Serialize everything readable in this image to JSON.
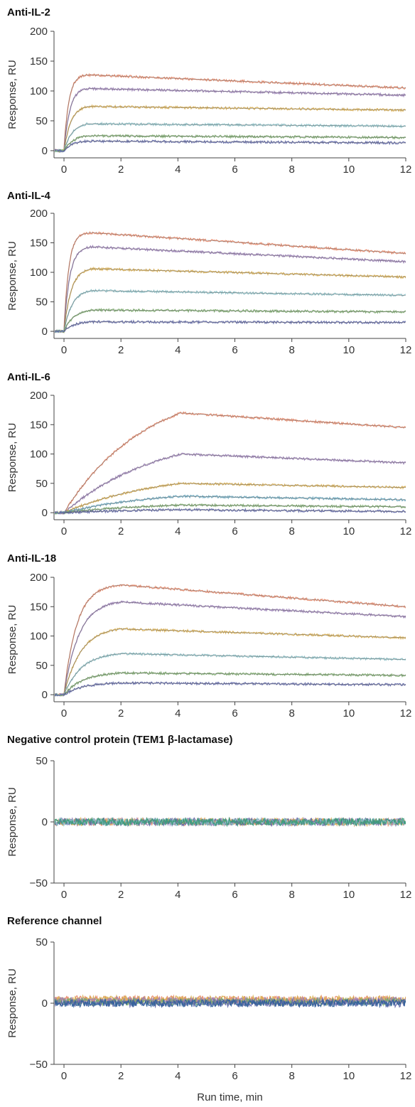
{
  "chart_data": [
    {
      "type": "line",
      "title": "Anti-IL-2",
      "ylabel": "Response, RU",
      "xlabel": "",
      "xlim": [
        -0.35,
        12
      ],
      "ylim": [
        -12,
        200
      ],
      "xticks": [
        "0",
        "2",
        "4",
        "6",
        "8",
        "10",
        "12"
      ],
      "yticks": [
        "0",
        "50",
        "100",
        "150",
        "200"
      ],
      "injection_end": 0.85,
      "noise": 2,
      "series": [
        {
          "plateau": 127,
          "end": 105,
          "rate": 6.0,
          "color": "#e98a6a"
        },
        {
          "plateau": 104,
          "end": 93,
          "rate": 5.0,
          "color": "#9b80b8"
        },
        {
          "plateau": 74,
          "end": 68,
          "rate": 4.0,
          "color": "#d9ae50"
        },
        {
          "plateau": 45,
          "end": 41,
          "rate": 3.5,
          "color": "#8ac0c6"
        },
        {
          "plateau": 25,
          "end": 22,
          "rate": 3.0,
          "color": "#7aaa6a"
        },
        {
          "plateau": 16,
          "end": 13,
          "rate": 3.0,
          "color": "#5f67a8"
        }
      ]
    },
    {
      "type": "line",
      "title": "Anti-IL-4",
      "ylabel": "Response, RU",
      "xlabel": "",
      "xlim": [
        -0.35,
        12
      ],
      "ylim": [
        -12,
        200
      ],
      "xticks": [
        "0",
        "2",
        "4",
        "6",
        "8",
        "10",
        "12"
      ],
      "yticks": [
        "0",
        "50",
        "100",
        "150",
        "200"
      ],
      "injection_end": 1.0,
      "noise": 2,
      "series": [
        {
          "plateau": 167,
          "end": 132,
          "rate": 6.0,
          "color": "#e98a6a"
        },
        {
          "plateau": 143,
          "end": 118,
          "rate": 5.0,
          "color": "#9b80b8"
        },
        {
          "plateau": 106,
          "end": 92,
          "rate": 4.0,
          "color": "#d9ae50"
        },
        {
          "plateau": 69,
          "end": 61,
          "rate": 3.5,
          "color": "#8ac0c6"
        },
        {
          "plateau": 36,
          "end": 33,
          "rate": 3.0,
          "color": "#7aaa6a"
        },
        {
          "plateau": 16,
          "end": 15,
          "rate": 3.0,
          "color": "#5f67a8"
        }
      ]
    },
    {
      "type": "line",
      "title": "Anti-IL-6",
      "ylabel": "Response, RU",
      "xlabel": "",
      "xlim": [
        -0.35,
        12
      ],
      "ylim": [
        -12,
        200
      ],
      "xticks": [
        "0",
        "2",
        "4",
        "6",
        "8",
        "10",
        "12"
      ],
      "yticks": [
        "0",
        "50",
        "100",
        "150",
        "200"
      ],
      "injection_end": 4.1,
      "noise": 2,
      "series": [
        {
          "plateau": 170,
          "end": 145,
          "rate": 0.35,
          "color": "#e98a6a"
        },
        {
          "plateau": 100,
          "end": 85,
          "rate": 0.3,
          "color": "#9b80b8"
        },
        {
          "plateau": 50,
          "end": 43,
          "rate": 0.3,
          "color": "#d9ae50"
        },
        {
          "plateau": 28,
          "end": 22,
          "rate": 0.3,
          "color": "#6aa8c0"
        },
        {
          "plateau": 13,
          "end": 10,
          "rate": 0.3,
          "color": "#7aaa6a"
        },
        {
          "plateau": 5,
          "end": 2,
          "rate": 0.3,
          "color": "#5f67a8"
        }
      ]
    },
    {
      "type": "line",
      "title": "Anti-IL-18",
      "ylabel": "Response, RU",
      "xlabel": "",
      "xlim": [
        -0.35,
        12
      ],
      "ylim": [
        -12,
        200
      ],
      "xticks": [
        "0",
        "2",
        "4",
        "6",
        "8",
        "10",
        "12"
      ],
      "yticks": [
        "0",
        "50",
        "100",
        "150",
        "200"
      ],
      "injection_end": 2.0,
      "noise": 2,
      "series": [
        {
          "plateau": 187,
          "end": 150,
          "rate": 2.2,
          "color": "#e98a6a"
        },
        {
          "plateau": 158,
          "end": 133,
          "rate": 1.9,
          "color": "#9b80b8"
        },
        {
          "plateau": 112,
          "end": 97,
          "rate": 1.7,
          "color": "#d9ae50"
        },
        {
          "plateau": 70,
          "end": 60,
          "rate": 1.6,
          "color": "#8ac0c6"
        },
        {
          "plateau": 37,
          "end": 33,
          "rate": 1.5,
          "color": "#7aaa6a"
        },
        {
          "plateau": 20,
          "end": 17,
          "rate": 1.5,
          "color": "#5f67a8"
        }
      ]
    },
    {
      "type": "line",
      "title": "Negative control protein  (TEM1 β-lactamase)",
      "ylabel": "Response, RU",
      "xlabel": "",
      "xlim": [
        -0.35,
        12
      ],
      "ylim": [
        -50,
        50
      ],
      "xticks": [
        "0",
        "2",
        "4",
        "6",
        "8",
        "10",
        "12"
      ],
      "yticks": [
        "−50",
        "0",
        "50"
      ],
      "injection_end": 0,
      "noise": 3,
      "series": [
        {
          "plateau": 0,
          "end": 0,
          "rate": 1,
          "color": "#e98a6a"
        },
        {
          "plateau": 0,
          "end": 0,
          "rate": 1,
          "color": "#9b80b8"
        },
        {
          "plateau": 0,
          "end": 0,
          "rate": 1,
          "color": "#d9ae50"
        },
        {
          "plateau": 0,
          "end": 0,
          "rate": 1,
          "color": "#5f67a8"
        },
        {
          "plateau": 0,
          "end": 0,
          "rate": 1,
          "color": "#8ac0c6"
        },
        {
          "plateau": 0,
          "end": 0,
          "rate": 1,
          "color": "#3a9a7a"
        }
      ]
    },
    {
      "type": "line",
      "title": "Reference channel",
      "ylabel": "Response, RU",
      "xlabel": "Run time, min",
      "xlim": [
        -0.35,
        12
      ],
      "ylim": [
        -50,
        50
      ],
      "xticks": [
        "0",
        "2",
        "4",
        "6",
        "8",
        "10",
        "12"
      ],
      "yticks": [
        "−50",
        "0",
        "50"
      ],
      "injection_end": 0,
      "noise": 3,
      "series": [
        {
          "plateau": 3,
          "end": 3,
          "rate": 1,
          "color": "#e98a6a"
        },
        {
          "plateau": 3,
          "end": 3,
          "rate": 1,
          "color": "#d9ae50"
        },
        {
          "plateau": 2,
          "end": 2,
          "rate": 1,
          "color": "#9b80b8"
        },
        {
          "plateau": 1,
          "end": 1,
          "rate": 1,
          "color": "#7aaa6a"
        },
        {
          "plateau": 0,
          "end": 0,
          "rate": 1,
          "color": "#5f67a8"
        },
        {
          "plateau": 0,
          "end": 0,
          "rate": 1,
          "color": "#2f5f9a"
        }
      ]
    }
  ]
}
